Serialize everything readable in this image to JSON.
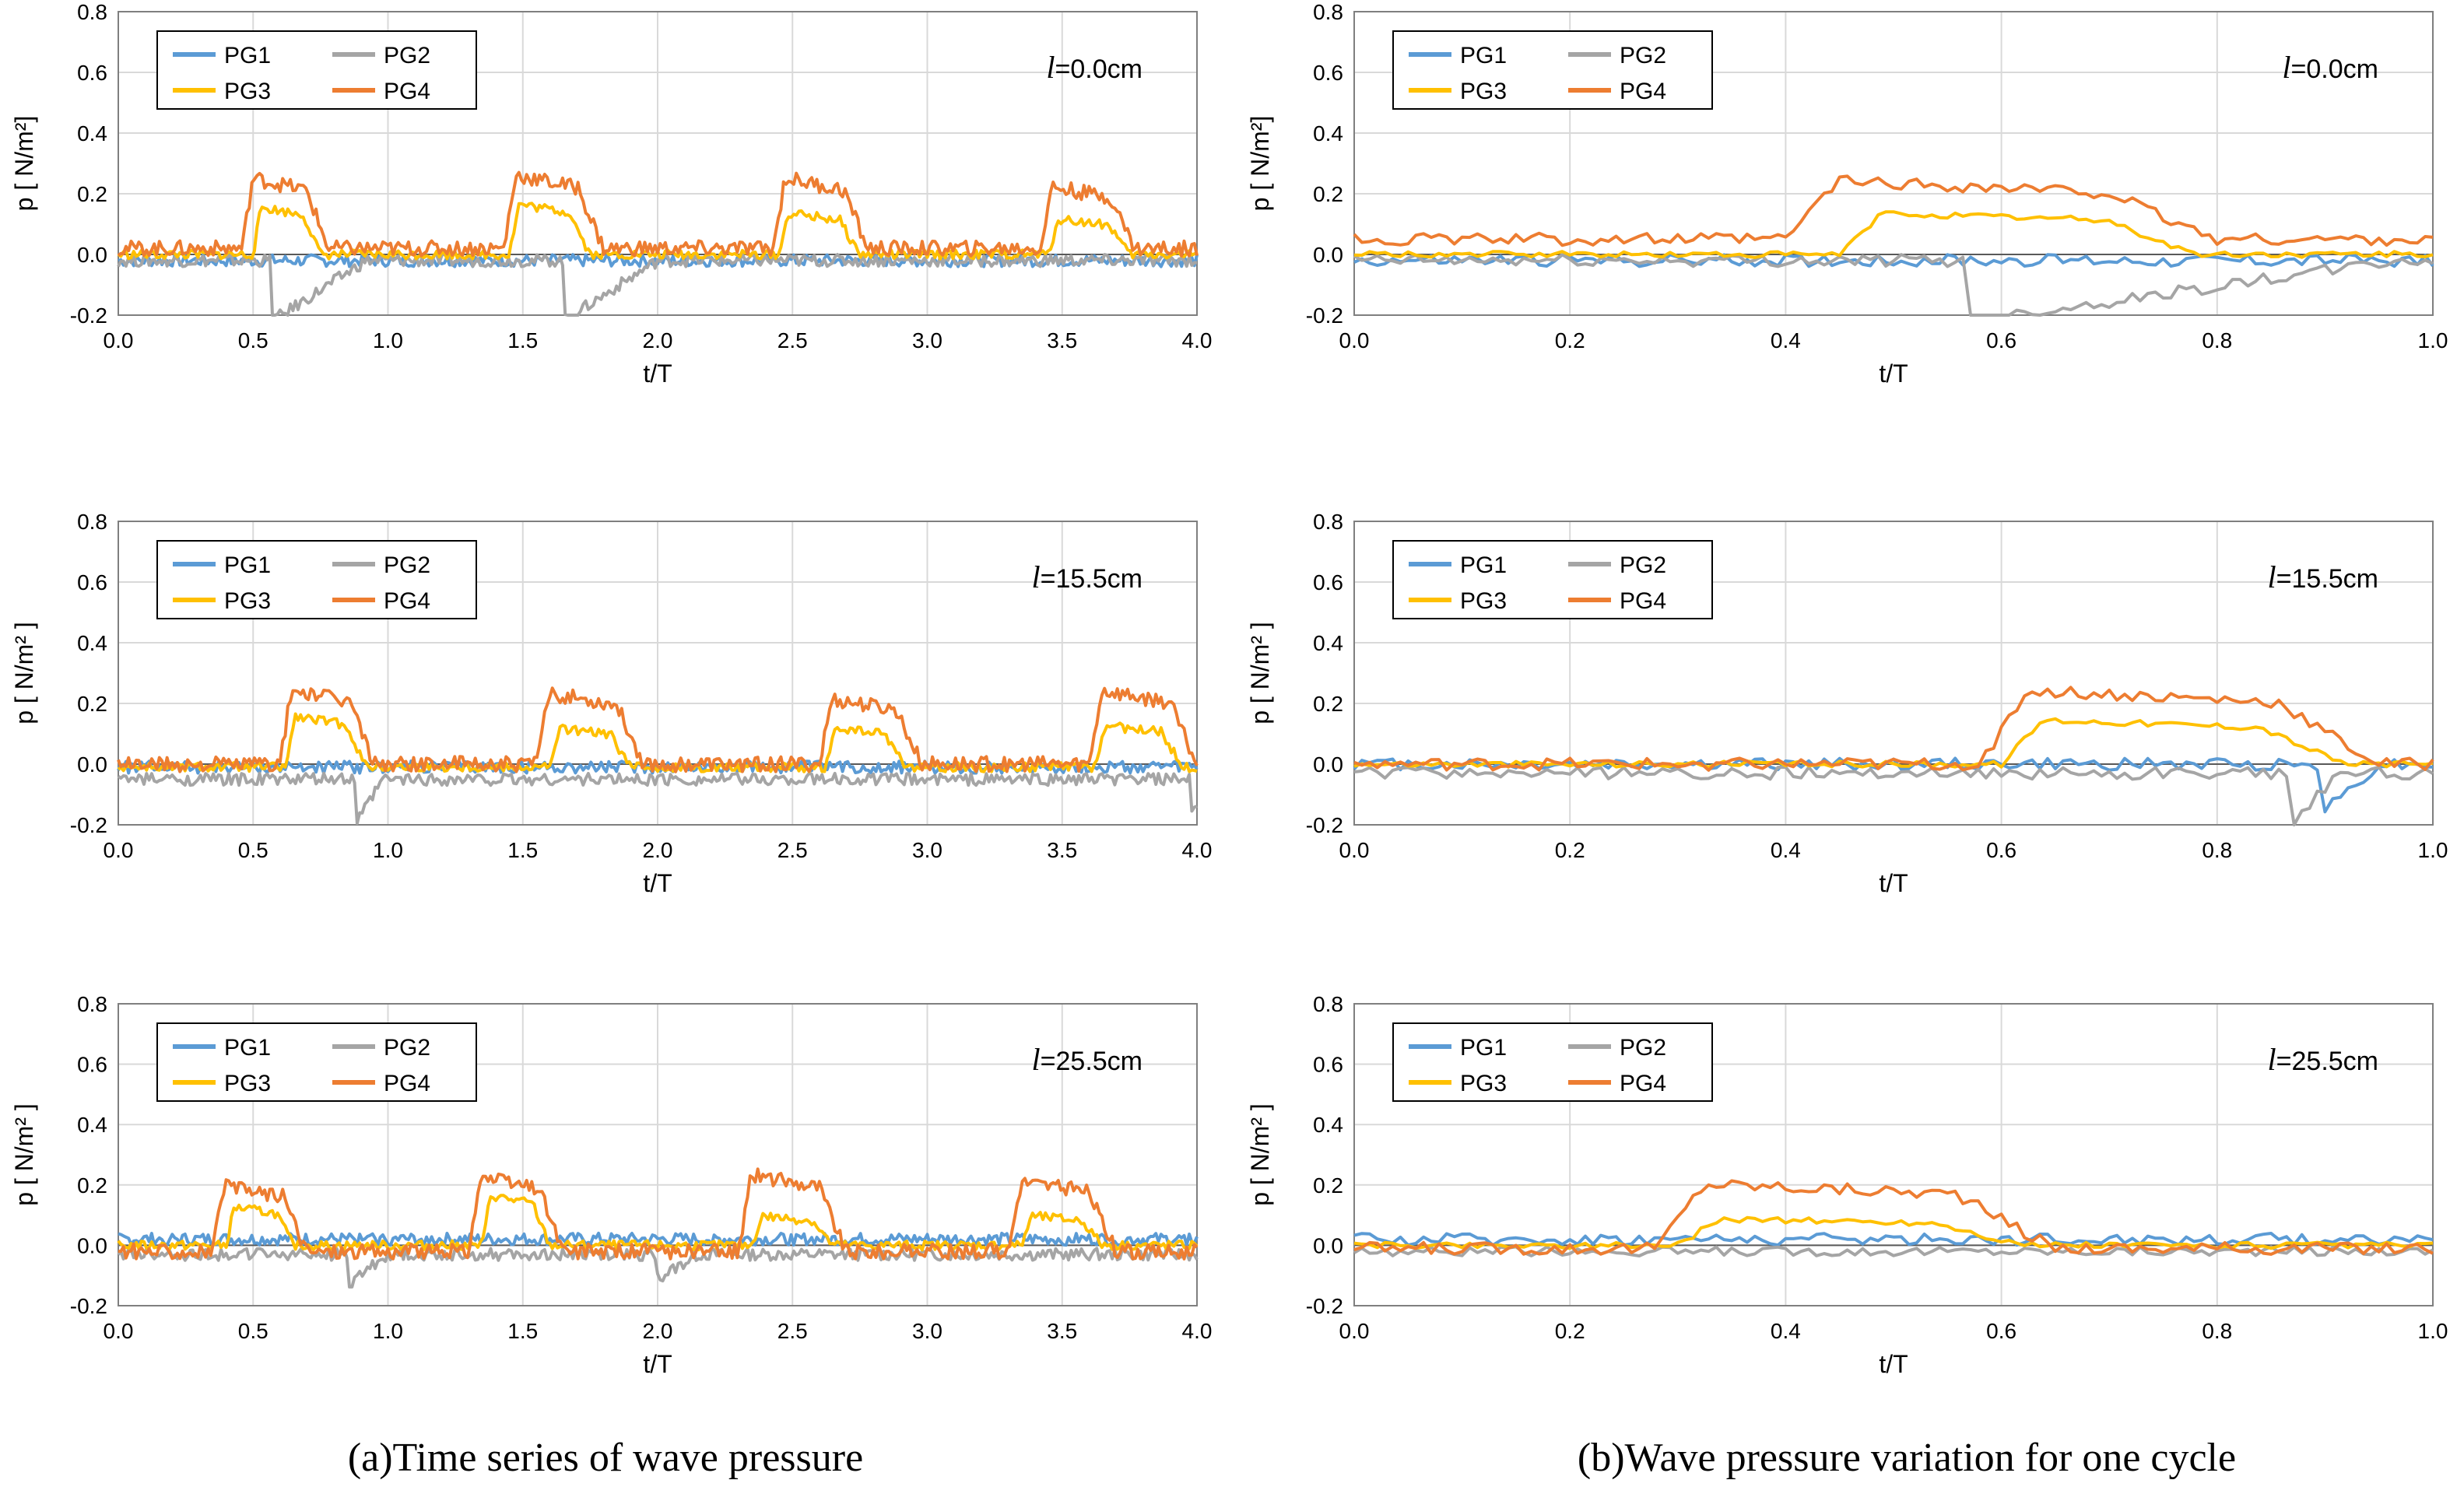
{
  "colors": {
    "PG1": "#5b9bd5",
    "PG2": "#a5a5a5",
    "PG3": "#ffc000",
    "PG4": "#ed7d31",
    "grid": "#d9d9d9"
  },
  "captions": {
    "left": "(a)Time series of wave pressure",
    "right": "(b)Wave pressure variation for one cycle"
  },
  "chart_data": [
    {
      "type": "line",
      "column": "a",
      "row": 0,
      "xlabel": "t/T",
      "ylabel": "p [ N/m²]",
      "xlim": [
        0,
        4
      ],
      "ylim": [
        -0.2,
        0.8
      ],
      "xticks": [
        "0.0",
        "0.5",
        "1.0",
        "1.5",
        "2.0",
        "2.5",
        "3.0",
        "3.5",
        "4.0"
      ],
      "yticks": [
        "-0.2",
        "0.0",
        "0.2",
        "0.4",
        "0.6",
        "0.8"
      ],
      "annotation": {
        "symbol": "l",
        "value": "=0.0cm"
      },
      "legend": [
        "PG1",
        "PG2",
        "PG3",
        "PG4"
      ],
      "series": [
        {
          "name": "PG1",
          "mean": -0.02,
          "noise": 0.02,
          "pulses": [],
          "dips": []
        },
        {
          "name": "PG2",
          "mean": -0.02,
          "noise": 0.02,
          "pulses": [],
          "dips": [
            [
              0.57,
              0.2
            ],
            [
              1.65,
              0.2
            ]
          ],
          "dip_recover": 0.35
        },
        {
          "name": "PG3",
          "mean": 0.0,
          "noise": 0.015,
          "pulses": [
            [
              0.5,
              0.75,
              0.16
            ],
            [
              1.45,
              1.75,
              0.17
            ],
            [
              2.45,
              2.75,
              0.14
            ],
            [
              3.45,
              3.75,
              0.12
            ]
          ],
          "dips": []
        },
        {
          "name": "PG4",
          "mean": 0.02,
          "noise": 0.025,
          "pulses": [
            [
              0.46,
              0.78,
              0.26
            ],
            [
              1.43,
              1.8,
              0.27
            ],
            [
              2.43,
              2.78,
              0.26
            ],
            [
              3.42,
              3.77,
              0.23
            ]
          ],
          "dips": []
        }
      ]
    },
    {
      "type": "line",
      "column": "b",
      "row": 0,
      "xlabel": "t/T",
      "ylabel": "p [ N/m²]",
      "xlim": [
        0,
        1
      ],
      "ylim": [
        -0.2,
        0.8
      ],
      "xticks": [
        "0.0",
        "0.2",
        "0.4",
        "0.6",
        "0.8",
        "1.0"
      ],
      "yticks": [
        "-0.2",
        "0.0",
        "0.2",
        "0.4",
        "0.6",
        "0.8"
      ],
      "annotation": {
        "symbol": "l",
        "value": "=0.0cm"
      },
      "legend": [
        "PG1",
        "PG2",
        "PG3",
        "PG4"
      ],
      "series": [
        {
          "name": "PG1",
          "mean": -0.02,
          "noise": 0.02,
          "pulses": [],
          "dips": []
        },
        {
          "name": "PG2",
          "mean": -0.02,
          "noise": 0.02,
          "pulses": [],
          "dips": [
            [
              0.57,
              0.2
            ]
          ],
          "dip_recover": 0.4
        },
        {
          "name": "PG3",
          "mean": 0.0,
          "noise": 0.01,
          "pulses": [
            [
              0.45,
              0.78,
              0.14
            ]
          ],
          "dips": []
        },
        {
          "name": "PG4",
          "mean": 0.05,
          "noise": 0.02,
          "pulses": [
            [
              0.4,
              0.8,
              0.25
            ]
          ],
          "dips": []
        }
      ]
    },
    {
      "type": "line",
      "column": "a",
      "row": 1,
      "xlabel": "t/T",
      "ylabel": "p [ N/m² ]",
      "xlim": [
        0,
        4
      ],
      "ylim": [
        -0.2,
        0.8
      ],
      "xticks": [
        "0.0",
        "0.5",
        "1.0",
        "1.5",
        "2.0",
        "2.5",
        "3.0",
        "3.5",
        "4.0"
      ],
      "yticks": [
        "-0.2",
        "0.0",
        "0.2",
        "0.4",
        "0.6",
        "0.8"
      ],
      "annotation": {
        "symbol": "l",
        "value": "=15.5cm"
      },
      "legend": [
        "PG1",
        "PG2",
        "PG3",
        "PG4"
      ],
      "series": [
        {
          "name": "PG1",
          "mean": -0.01,
          "noise": 0.02,
          "pulses": [],
          "dips": []
        },
        {
          "name": "PG2",
          "mean": -0.05,
          "noise": 0.02,
          "pulses": [],
          "dips": [
            [
              0.88,
              0.15
            ],
            [
              3.98,
              0.12
            ]
          ],
          "dip_recover": 0.1
        },
        {
          "name": "PG3",
          "mean": -0.01,
          "noise": 0.015,
          "pulses": [
            [
              0.62,
              0.92,
              0.16
            ],
            [
              1.6,
              1.9,
              0.12
            ],
            [
              2.62,
              2.92,
              0.12
            ],
            [
              3.62,
              3.95,
              0.13
            ]
          ],
          "dips": []
        },
        {
          "name": "PG4",
          "mean": 0.0,
          "noise": 0.025,
          "pulses": [
            [
              0.6,
              0.95,
              0.25
            ],
            [
              1.55,
              1.95,
              0.24
            ],
            [
              2.6,
              2.98,
              0.22
            ],
            [
              3.6,
              4.0,
              0.25
            ]
          ],
          "dips": []
        }
      ]
    },
    {
      "type": "line",
      "column": "b",
      "row": 1,
      "xlabel": "t/T",
      "ylabel": "p [ N/m² ]",
      "xlim": [
        0,
        1
      ],
      "ylim": [
        -0.2,
        0.8
      ],
      "xticks": [
        "0.0",
        "0.2",
        "0.4",
        "0.6",
        "0.8",
        "1.0"
      ],
      "yticks": [
        "-0.2",
        "0.0",
        "0.2",
        "0.4",
        "0.6",
        "0.8"
      ],
      "annotation": {
        "symbol": "l",
        "value": "=15.5cm"
      },
      "legend": [
        "PG1",
        "PG2",
        "PG3",
        "PG4"
      ],
      "series": [
        {
          "name": "PG1",
          "mean": 0.0,
          "noise": 0.02,
          "pulses": [],
          "dips": [
            [
              0.9,
              0.15
            ]
          ],
          "dip_recover": 0.05
        },
        {
          "name": "PG2",
          "mean": -0.03,
          "noise": 0.02,
          "pulses": [],
          "dips": [
            [
              0.87,
              0.18
            ]
          ],
          "dip_recover": 0.04
        },
        {
          "name": "PG3",
          "mean": 0.0,
          "noise": 0.01,
          "pulses": [
            [
              0.6,
              0.92,
              0.15
            ]
          ],
          "dips": []
        },
        {
          "name": "PG4",
          "mean": 0.0,
          "noise": 0.02,
          "pulses": [
            [
              0.58,
              0.95,
              0.25
            ]
          ],
          "dips": []
        }
      ]
    },
    {
      "type": "line",
      "column": "a",
      "row": 2,
      "xlabel": "t/T",
      "ylabel": "p [ N/m² ]",
      "xlim": [
        0,
        4
      ],
      "ylim": [
        -0.2,
        0.8
      ],
      "xticks": [
        "0.0",
        "0.5",
        "1.0",
        "1.5",
        "2.0",
        "2.5",
        "3.0",
        "3.5",
        "4.0"
      ],
      "yticks": [
        "-0.2",
        "0.0",
        "0.2",
        "0.4",
        "0.6",
        "0.8"
      ],
      "annotation": {
        "symbol": "l",
        "value": "=25.5cm"
      },
      "legend": [
        "PG1",
        "PG2",
        "PG3",
        "PG4"
      ],
      "series": [
        {
          "name": "PG1",
          "mean": 0.02,
          "noise": 0.02,
          "pulses": [],
          "dips": []
        },
        {
          "name": "PG2",
          "mean": -0.03,
          "noise": 0.02,
          "pulses": [],
          "dips": [
            [
              0.85,
              0.1
            ],
            [
              2.0,
              0.08
            ]
          ],
          "dip_recover": 0.15
        },
        {
          "name": "PG3",
          "mean": 0.0,
          "noise": 0.015,
          "pulses": [
            [
              0.4,
              0.65,
              0.13
            ],
            [
              1.35,
              1.6,
              0.17
            ],
            [
              2.35,
              2.65,
              0.1
            ],
            [
              3.35,
              3.65,
              0.1
            ]
          ],
          "dips": []
        },
        {
          "name": "PG4",
          "mean": -0.02,
          "noise": 0.025,
          "pulses": [
            [
              0.35,
              0.7,
              0.2
            ],
            [
              1.3,
              1.65,
              0.23
            ],
            [
              2.3,
              2.7,
              0.24
            ],
            [
              3.3,
              3.7,
              0.22
            ]
          ],
          "dips": []
        }
      ]
    },
    {
      "type": "line",
      "column": "b",
      "row": 2,
      "xlabel": "t/T",
      "ylabel": "p [ N/m² ]",
      "xlim": [
        0,
        1
      ],
      "ylim": [
        -0.2,
        0.8
      ],
      "xticks": [
        "0.0",
        "0.2",
        "0.4",
        "0.6",
        "0.8",
        "1.0"
      ],
      "yticks": [
        "-0.2",
        "0.0",
        "0.2",
        "0.4",
        "0.6",
        "0.8"
      ],
      "annotation": {
        "symbol": "l",
        "value": "=25.5cm"
      },
      "legend": [
        "PG1",
        "PG2",
        "PG3",
        "PG4"
      ],
      "series": [
        {
          "name": "PG1",
          "mean": 0.02,
          "noise": 0.02,
          "pulses": [],
          "dips": []
        },
        {
          "name": "PG2",
          "mean": -0.02,
          "noise": 0.015,
          "pulses": [],
          "dips": []
        },
        {
          "name": "PG3",
          "mean": 0.0,
          "noise": 0.01,
          "pulses": [
            [
              0.3,
              0.62,
              0.09
            ]
          ],
          "dips": []
        },
        {
          "name": "PG4",
          "mean": -0.01,
          "noise": 0.02,
          "pulses": [
            [
              0.28,
              0.65,
              0.21
            ]
          ],
          "dips": []
        }
      ]
    }
  ]
}
